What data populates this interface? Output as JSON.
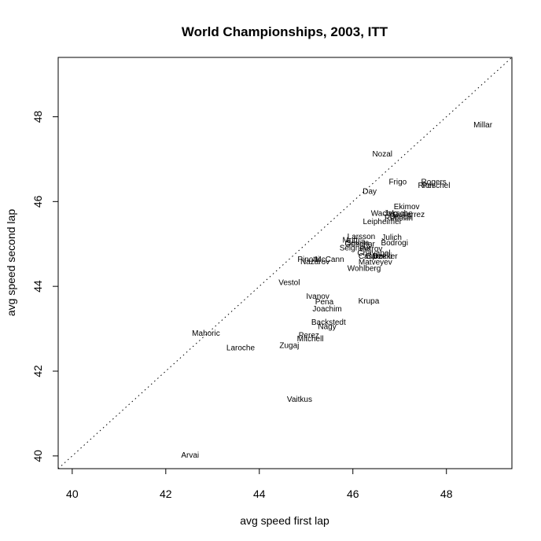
{
  "chart_data": {
    "type": "scatter",
    "title": "World Championships, 2003, ITT",
    "xlabel": "avg speed first lap",
    "ylabel": "avg speed second lap",
    "xlim": [
      39.7,
      49.4
    ],
    "ylim": [
      39.7,
      49.4
    ],
    "xticks": [
      40,
      42,
      44,
      46,
      48
    ],
    "yticks": [
      40,
      42,
      44,
      46,
      48
    ],
    "reference_line": {
      "slope": 1,
      "intercept": 0,
      "style": "dotted"
    },
    "grid": false,
    "points": [
      {
        "label": "Millar",
        "x": 48.78,
        "y": 47.81
      },
      {
        "label": "Nozal",
        "x": 46.63,
        "y": 47.13
      },
      {
        "label": "Frigo",
        "x": 46.96,
        "y": 46.47
      },
      {
        "label": "Rogers",
        "x": 47.73,
        "y": 46.47
      },
      {
        "label": "Rich",
        "x": 47.56,
        "y": 46.39
      },
      {
        "label": "Peschel",
        "x": 47.78,
        "y": 46.39
      },
      {
        "label": "Day",
        "x": 46.36,
        "y": 46.25
      },
      {
        "label": "Ekimov",
        "x": 47.15,
        "y": 45.89
      },
      {
        "label": "Wachs",
        "x": 46.64,
        "y": 45.73
      },
      {
        "label": "Jaksche",
        "x": 46.97,
        "y": 45.73
      },
      {
        "label": "Gutierrez",
        "x": 47.19,
        "y": 45.7
      },
      {
        "label": "Ullrich",
        "x": 47.02,
        "y": 45.64
      },
      {
        "label": "Rebellin",
        "x": 46.98,
        "y": 45.62
      },
      {
        "label": "Leipheimer",
        "x": 46.63,
        "y": 45.53
      },
      {
        "label": "Larsson",
        "x": 46.18,
        "y": 45.18
      },
      {
        "label": "Julich",
        "x": 46.83,
        "y": 45.16
      },
      {
        "label": "Bodrogi",
        "x": 46.89,
        "y": 45.03
      },
      {
        "label": "Mutti",
        "x": 45.96,
        "y": 45.1
      },
      {
        "label": "Gonchar",
        "x": 46.15,
        "y": 45.0
      },
      {
        "label": "Sevilla",
        "x": 46.1,
        "y": 45.03
      },
      {
        "label": "Seigneur",
        "x": 46.05,
        "y": 44.91
      },
      {
        "label": "Petrov",
        "x": 46.39,
        "y": 44.89
      },
      {
        "label": "Chavanel",
        "x": 46.45,
        "y": 44.79
      },
      {
        "label": "Casper",
        "x": 46.39,
        "y": 44.72
      },
      {
        "label": "Garzelli",
        "x": 46.55,
        "y": 44.72
      },
      {
        "label": "Dekker",
        "x": 46.69,
        "y": 44.72
      },
      {
        "label": "Pinotti",
        "x": 45.05,
        "y": 44.64
      },
      {
        "label": "McCann",
        "x": 45.5,
        "y": 44.64
      },
      {
        "label": "Nazarov",
        "x": 45.19,
        "y": 44.59
      },
      {
        "label": "Matveyev",
        "x": 46.48,
        "y": 44.58
      },
      {
        "label": "Wohlberg",
        "x": 46.24,
        "y": 44.43
      },
      {
        "label": "Vestol",
        "x": 44.64,
        "y": 44.1
      },
      {
        "label": "Ivanov",
        "x": 45.25,
        "y": 43.77
      },
      {
        "label": "Pena",
        "x": 45.39,
        "y": 43.64
      },
      {
        "label": "Krupa",
        "x": 46.34,
        "y": 43.66
      },
      {
        "label": "Joachim",
        "x": 45.45,
        "y": 43.47
      },
      {
        "label": "Backstedt",
        "x": 45.48,
        "y": 43.16
      },
      {
        "label": "Nagy",
        "x": 45.45,
        "y": 43.06
      },
      {
        "label": "Perez",
        "x": 45.06,
        "y": 42.85
      },
      {
        "label": "Mitchell",
        "x": 45.09,
        "y": 42.77
      },
      {
        "label": "Mahoric",
        "x": 42.86,
        "y": 42.9
      },
      {
        "label": "Laroche",
        "x": 43.6,
        "y": 42.56
      },
      {
        "label": "Zugaj",
        "x": 44.64,
        "y": 42.61
      },
      {
        "label": "Vaitkus",
        "x": 44.86,
        "y": 41.34
      },
      {
        "label": "Arvai",
        "x": 42.52,
        "y": 40.02
      }
    ]
  }
}
